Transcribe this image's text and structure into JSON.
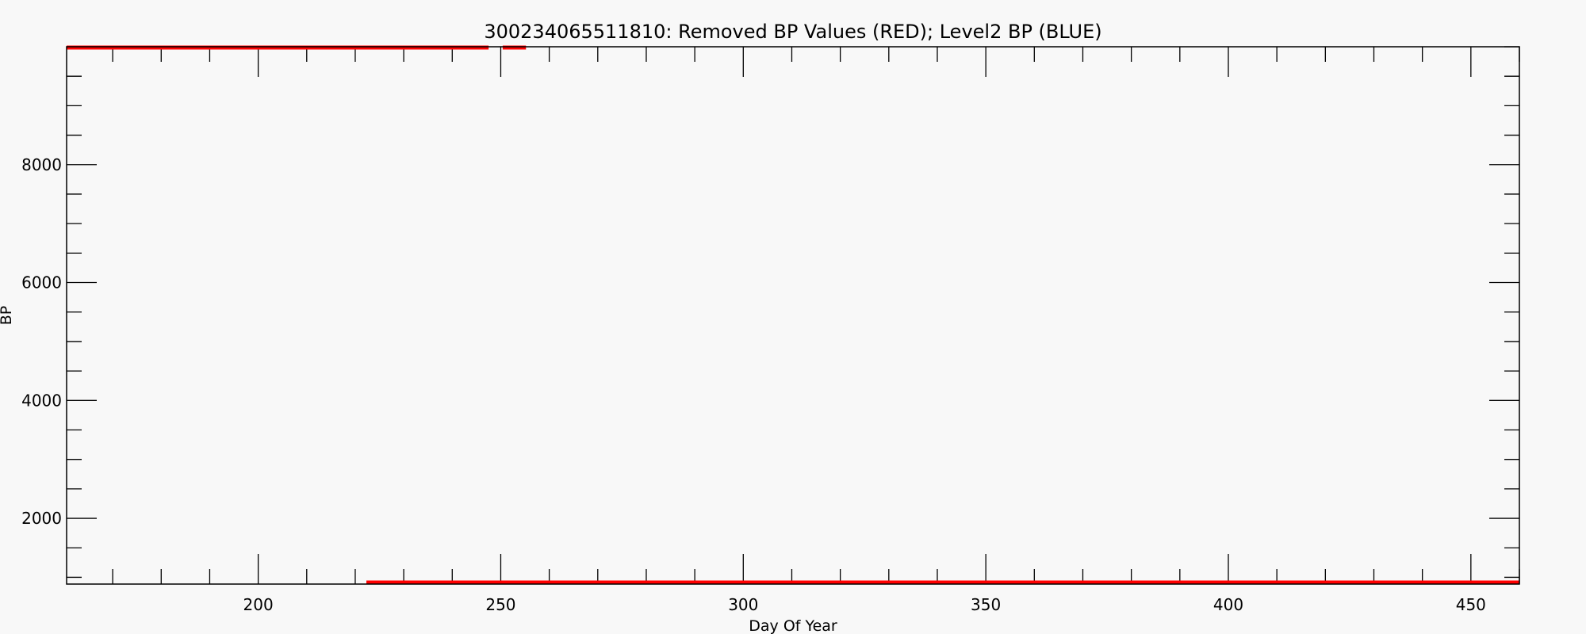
{
  "chart_data": {
    "type": "line",
    "title": "300234065511810: Removed BP Values (RED); Level2 BP (BLUE)",
    "xlabel": "Day Of Year",
    "ylabel": "BP",
    "xlim": [
      160.5,
      460
    ],
    "ylim": [
      885,
      10000
    ],
    "xticks": [
      200,
      250,
      300,
      350,
      400,
      450
    ],
    "xtick_labels": [
      "200",
      "250",
      "300",
      "350",
      "400",
      "450"
    ],
    "x_minor_step": 10,
    "yticks": [
      2000,
      4000,
      6000,
      8000
    ],
    "ytick_labels": [
      "2000",
      "4000",
      "6000",
      "8000"
    ],
    "y_minor_step": 500,
    "grid": false,
    "series": [
      {
        "color": "#ff0000",
        "segments": [
          {
            "x": [
              160.5,
              247.5
            ],
            "y": [
              9999,
              9999
            ]
          },
          {
            "x": [
              250.4,
              255.2
            ],
            "y": [
              9999,
              9999
            ]
          },
          {
            "x": [
              222.3,
              460
            ],
            "y": [
              885,
              885
            ]
          }
        ]
      }
    ],
    "colors": {
      "removed": "#ff0000",
      "level2": "#0000ff",
      "axis": "#000000",
      "background": "#f8f8f8"
    }
  }
}
